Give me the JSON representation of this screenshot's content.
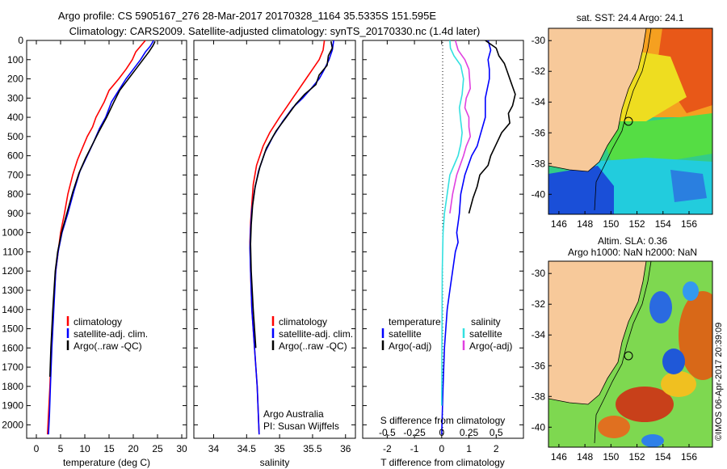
{
  "header": {
    "line1": "Argo profile: CS 5905167_276 28-Mar-2017 20170328_1164 35.5335S 151.595E",
    "line2": "Climatology: CARS2009. Satellite-adjusted climatology: synTS_20170330.nc (1.4d later)"
  },
  "colors": {
    "climatology": "#ff0000",
    "satellite": "#0000ff",
    "argo": "#000000",
    "satellite_salinity": "#33e0e0",
    "argo_salinity_adj": "#e040e0",
    "land": "#f7c99a"
  },
  "chart_data": [
    {
      "id": "temperature",
      "type": "line",
      "xlabel": "temperature (deg C)",
      "ylabel": "",
      "xlim": [
        -2,
        31
      ],
      "ylim": [
        2070,
        0
      ],
      "xticks": [
        0,
        5,
        10,
        15,
        20,
        25,
        30
      ],
      "yticks": [
        0,
        100,
        200,
        300,
        400,
        500,
        600,
        700,
        800,
        900,
        1000,
        1100,
        1200,
        1300,
        1400,
        1500,
        1600,
        1700,
        1800,
        1900,
        2000
      ],
      "legend": [
        "climatology",
        "satellite-adj. clim.",
        "Argo(..raw -QC)"
      ],
      "series": [
        {
          "name": "climatology",
          "color": "#ff0000",
          "x": [
            22.5,
            21.5,
            20.5,
            19.8,
            18.5,
            17,
            15,
            14,
            12.3,
            11.6,
            10.5,
            9.5,
            8.5,
            7.5,
            6.5,
            5.8,
            5,
            4.5,
            4,
            3.5,
            3.1,
            2.8,
            2.5,
            2.3
          ],
          "y": [
            0,
            30,
            60,
            100,
            150,
            200,
            260,
            320,
            400,
            450,
            500,
            560,
            620,
            700,
            800,
            900,
            1000,
            1100,
            1200,
            1400,
            1600,
            1800,
            1950,
            2050
          ]
        },
        {
          "name": "satellite-adj. clim.",
          "color": "#0000ff",
          "x": [
            24.2,
            23.5,
            22.5,
            21.5,
            20,
            18.5,
            17,
            15.5,
            14.3,
            13,
            11.8,
            10.5,
            9,
            7.8,
            6.5,
            5.3,
            4.5,
            4,
            3.6,
            3.2,
            2.9,
            2.7,
            2.5
          ],
          "y": [
            0,
            30,
            60,
            100,
            150,
            200,
            260,
            320,
            400,
            460,
            530,
            600,
            680,
            780,
            900,
            1000,
            1100,
            1200,
            1400,
            1600,
            1800,
            1950,
            2050
          ]
        },
        {
          "name": "Argo(..raw -QC)",
          "color": "#000000",
          "x": [
            24.5,
            24,
            23.2,
            22,
            20.5,
            19,
            17.2,
            16,
            14.5,
            13,
            11.6,
            10.2,
            8.8,
            7.5,
            6.3,
            5.2,
            4.4,
            3.9,
            3.4,
            3,
            2.8
          ],
          "y": [
            5,
            30,
            60,
            100,
            150,
            200,
            260,
            320,
            400,
            470,
            540,
            610,
            690,
            790,
            900,
            1000,
            1100,
            1200,
            1400,
            1600,
            1750
          ]
        }
      ]
    },
    {
      "id": "salinity",
      "type": "line",
      "xlabel": "salinity",
      "ylabel": "",
      "xlim": [
        33.7,
        36.15
      ],
      "ylim": [
        2070,
        0
      ],
      "xticks": [
        34,
        34.5,
        35,
        35.5,
        36
      ],
      "legend": [
        "climatology",
        "satellite-adj. clim.",
        "Argo(..raw -QC)"
      ],
      "annotation": [
        "Argo Australia",
        "PI: Susan Wijffels"
      ],
      "series": [
        {
          "name": "climatology",
          "color": "#ff0000",
          "x": [
            35.68,
            35.66,
            35.6,
            35.5,
            35.4,
            35.3,
            35.2,
            35.1,
            35.0,
            34.85,
            34.75,
            34.65,
            34.6,
            34.58,
            34.56,
            34.55,
            34.56,
            34.58,
            34.62,
            34.66,
            34.69
          ],
          "y": [
            0,
            50,
            100,
            150,
            200,
            250,
            300,
            350,
            400,
            480,
            550,
            650,
            750,
            850,
            950,
            1050,
            1200,
            1400,
            1600,
            1800,
            2050
          ]
        },
        {
          "name": "satellite-adj. clim.",
          "color": "#0000ff",
          "x": [
            35.82,
            35.8,
            35.75,
            35.68,
            35.6,
            35.48,
            35.35,
            35.2,
            35.05,
            34.9,
            34.78,
            34.68,
            34.62,
            34.58,
            34.56,
            34.55,
            34.56,
            34.58,
            34.62,
            34.66,
            34.69
          ],
          "y": [
            0,
            50,
            100,
            150,
            200,
            250,
            300,
            350,
            420,
            500,
            580,
            680,
            780,
            880,
            980,
            1080,
            1200,
            1400,
            1600,
            1800,
            2050
          ]
        },
        {
          "name": "Argo(..raw -QC)",
          "color": "#000000",
          "x": [
            35.78,
            35.8,
            35.74,
            35.72,
            35.6,
            35.55,
            35.38,
            35.25,
            35.1,
            34.95,
            34.8,
            34.7,
            34.63,
            34.59,
            34.57,
            34.56,
            34.57,
            34.6,
            34.64
          ],
          "y": [
            5,
            40,
            80,
            130,
            180,
            230,
            280,
            330,
            400,
            470,
            560,
            660,
            760,
            860,
            960,
            1060,
            1200,
            1400,
            1600
          ]
        }
      ]
    },
    {
      "id": "difference",
      "type": "line",
      "xlabel": "T difference from climatology",
      "x2label": "S difference from climatology",
      "ylabel": "",
      "xlim": [
        -2.9,
        3.0
      ],
      "ylim": [
        2070,
        0
      ],
      "xticks": [
        -2,
        -1,
        0,
        1,
        2
      ],
      "x2ticks": [
        "-0.5",
        "-0.25",
        "0",
        "0.25",
        "0.5"
      ],
      "legend_left_title": "temperature",
      "legend_right_title": "salinity",
      "legend": [
        "satellite",
        "Argo(-adj)",
        "satellite",
        "Argo(-adj)"
      ],
      "series": [
        {
          "name": "satellite",
          "color": "#0000ff",
          "x": [
            1.7,
            1.8,
            1.7,
            1.75,
            1.75,
            1.6,
            1.6,
            1.5,
            1.4,
            1.3,
            1.1,
            0.85,
            0.7,
            0.65,
            0.6,
            0.55,
            0.6,
            0.5,
            0.4,
            0.3,
            0.2,
            0.1,
            0.05,
            0
          ],
          "y": [
            0,
            50,
            100,
            150,
            200,
            300,
            400,
            450,
            500,
            550,
            600,
            700,
            800,
            900,
            950,
            1000,
            1050,
            1100,
            1200,
            1300,
            1400,
            1600,
            1800,
            2050
          ]
        },
        {
          "name": "Argo(-adj)",
          "color": "#000000",
          "x": [
            1.6,
            2.0,
            2.1,
            2.3,
            2.4,
            2.55,
            2.7,
            2.6,
            2.45,
            2.5,
            2.2,
            2.0,
            1.8,
            1.7,
            1.4,
            1.3,
            1.15,
            1.0
          ],
          "y": [
            0,
            40,
            80,
            120,
            160,
            220,
            280,
            340,
            380,
            430,
            480,
            540,
            600,
            650,
            700,
            760,
            820,
            900
          ]
        },
        {
          "name": "satellite",
          "color": "#33e0e0",
          "x": [
            0.3,
            0.32,
            0.45,
            0.7,
            0.8,
            0.75,
            0.65,
            0.7,
            0.75,
            0.7,
            0.6,
            0.45,
            0.3,
            0.2,
            0.1,
            0.05,
            0.02,
            0
          ],
          "y": [
            0,
            40,
            80,
            130,
            200,
            280,
            350,
            420,
            480,
            540,
            600,
            650,
            700,
            800,
            900,
            1000,
            1200,
            1900
          ]
        },
        {
          "name": "Argo(-adj)",
          "color": "#e040e0",
          "x": [
            0.5,
            0.6,
            0.85,
            1.0,
            1.05,
            0.9,
            0.85,
            1.0,
            1.0,
            1.05,
            0.9,
            0.8,
            0.55,
            0.4,
            0.3
          ],
          "y": [
            0,
            50,
            100,
            150,
            250,
            300,
            350,
            400,
            450,
            500,
            550,
            600,
            700,
            800,
            900
          ]
        }
      ]
    }
  ],
  "maps": [
    {
      "id": "sst-map",
      "title": "sat. SST: 24.4  Argo: 24.1",
      "title2": "",
      "lon_ticks": [
        "146",
        "148",
        "150",
        "152",
        "154",
        "156"
      ],
      "lat_ticks": [
        "-30",
        "-32",
        "-34",
        "-36",
        "-38",
        "-40"
      ]
    },
    {
      "id": "sla-map",
      "title": "Altim. SLA: 0.36",
      "title2": "Argo h1000: NaN h2000: NaN",
      "lon_ticks": [
        "146",
        "148",
        "150",
        "152",
        "154",
        "156"
      ],
      "lat_ticks": [
        "-30",
        "-32",
        "-34",
        "-36",
        "-38",
        "-40"
      ]
    }
  ],
  "side_label": "©IMOS 06-Apr-2017 20:39:09"
}
